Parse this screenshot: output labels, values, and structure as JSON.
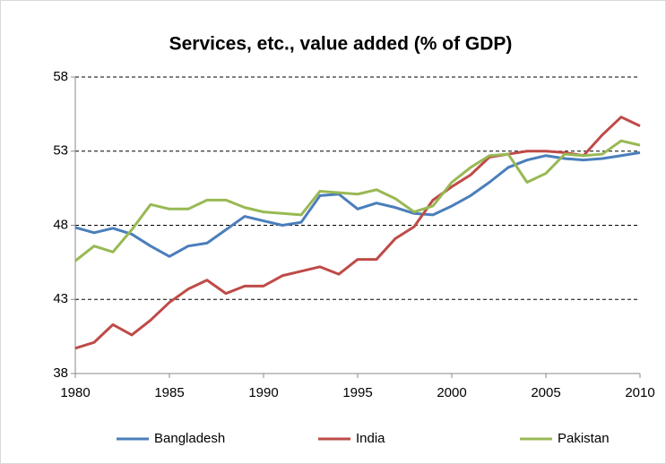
{
  "chart_data": {
    "type": "line",
    "title": "Services, etc., value added (% of GDP)",
    "x": [
      1980,
      1981,
      1982,
      1983,
      1984,
      1985,
      1986,
      1987,
      1988,
      1989,
      1990,
      1991,
      1992,
      1993,
      1994,
      1995,
      1996,
      1997,
      1998,
      1999,
      2000,
      2001,
      2002,
      2003,
      2004,
      2005,
      2006,
      2007,
      2008,
      2009,
      2010
    ],
    "series": [
      {
        "name": "Bangladesh",
        "color": "#4a7ebb",
        "values": [
          47.85,
          47.5,
          47.8,
          47.4,
          46.6,
          45.9,
          46.6,
          46.8,
          47.7,
          48.6,
          48.3,
          48.0,
          48.2,
          50.0,
          50.1,
          49.1,
          49.5,
          49.2,
          48.8,
          48.7,
          49.3,
          50.0,
          50.9,
          51.9,
          52.4,
          52.7,
          52.5,
          52.4,
          52.5,
          52.7,
          52.9
        ]
      },
      {
        "name": "India",
        "color": "#be4b48",
        "values": [
          39.7,
          40.1,
          41.3,
          40.6,
          41.6,
          42.8,
          43.7,
          44.3,
          43.4,
          43.9,
          43.9,
          44.6,
          44.9,
          45.2,
          44.7,
          45.7,
          45.7,
          47.1,
          47.9,
          49.7,
          50.6,
          51.4,
          52.6,
          52.8,
          53.0,
          53.0,
          52.9,
          52.7,
          54.1,
          55.3,
          54.7
        ]
      },
      {
        "name": "Pakistan",
        "color": "#98b954",
        "values": [
          45.6,
          46.6,
          46.2,
          47.7,
          49.4,
          49.1,
          49.1,
          49.7,
          49.7,
          49.2,
          48.9,
          48.8,
          48.7,
          50.3,
          50.2,
          50.1,
          50.4,
          49.8,
          48.9,
          49.3,
          50.9,
          51.9,
          52.7,
          52.8,
          50.9,
          51.5,
          52.8,
          52.7,
          52.8,
          53.7,
          53.4
        ]
      }
    ],
    "xlim": [
      1980,
      2010
    ],
    "xticks": [
      1980,
      1985,
      1990,
      1995,
      2000,
      2005,
      2010
    ],
    "ylim": [
      38,
      58
    ],
    "yticks": [
      38,
      43,
      48,
      53,
      58
    ],
    "grid": true,
    "legend": "bottom"
  }
}
